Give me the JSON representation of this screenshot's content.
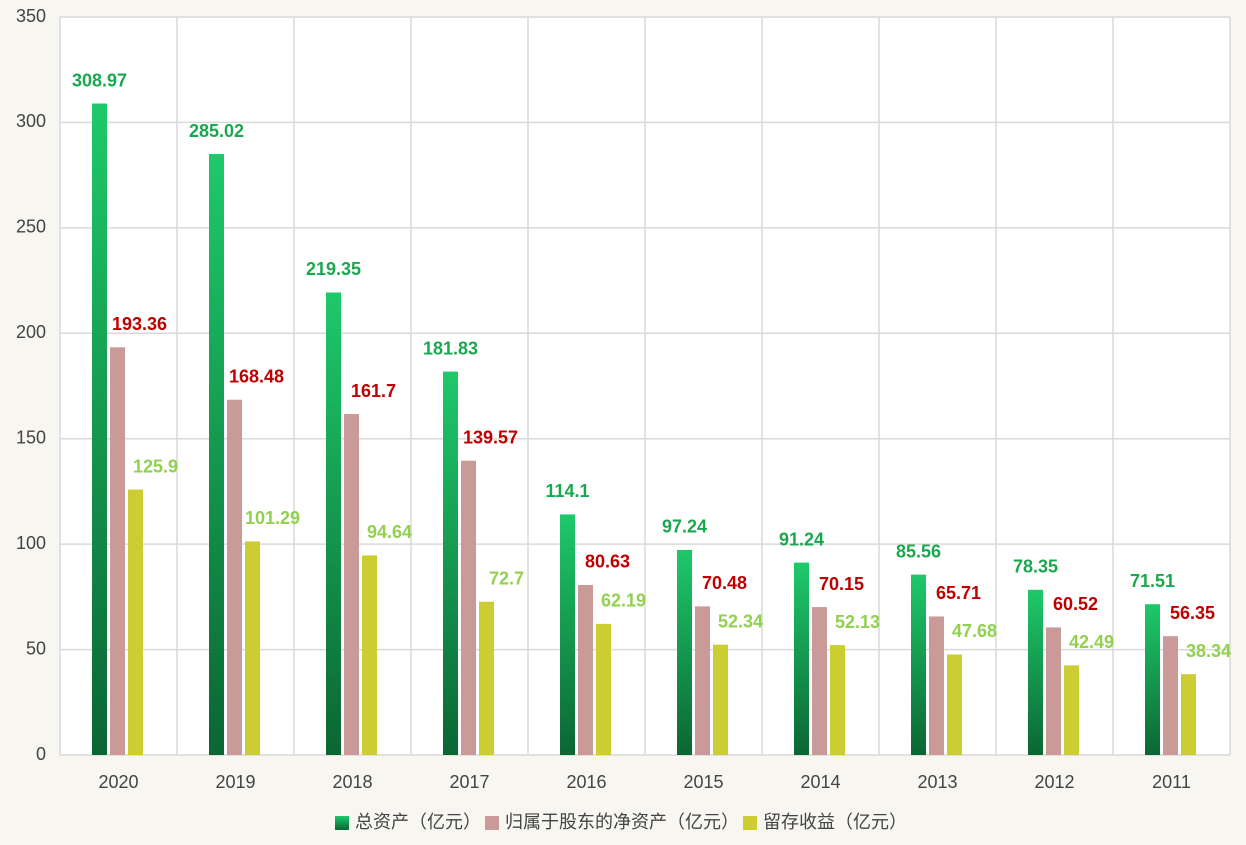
{
  "chart_data": {
    "type": "bar",
    "categories": [
      "2020",
      "2019",
      "2018",
      "2017",
      "2016",
      "2015",
      "2014",
      "2013",
      "2012",
      "2011"
    ],
    "series": [
      {
        "name": "总资产（亿元）",
        "color": "#1ec96a",
        "label_color": "#1aa84f",
        "values": [
          308.97,
          285.02,
          219.35,
          181.83,
          114.1,
          97.24,
          91.24,
          85.56,
          78.35,
          71.51
        ]
      },
      {
        "name": "归属于股东的净资产（亿元）",
        "color": "#c99a98",
        "label_color": "#c00000",
        "values": [
          193.36,
          168.48,
          161.7,
          139.57,
          80.63,
          70.48,
          70.15,
          65.71,
          60.52,
          56.35
        ]
      },
      {
        "name": "留存收益（亿元）",
        "color": "#cccc33",
        "label_color": "#92d050",
        "values": [
          125.9,
          101.29,
          94.64,
          72.7,
          62.19,
          52.34,
          52.13,
          47.68,
          42.49,
          38.34
        ]
      }
    ],
    "ylim": [
      0,
      350
    ],
    "yticks": [
      0,
      50,
      100,
      150,
      200,
      250,
      300,
      350
    ],
    "grid": true,
    "legend": "bottom"
  }
}
